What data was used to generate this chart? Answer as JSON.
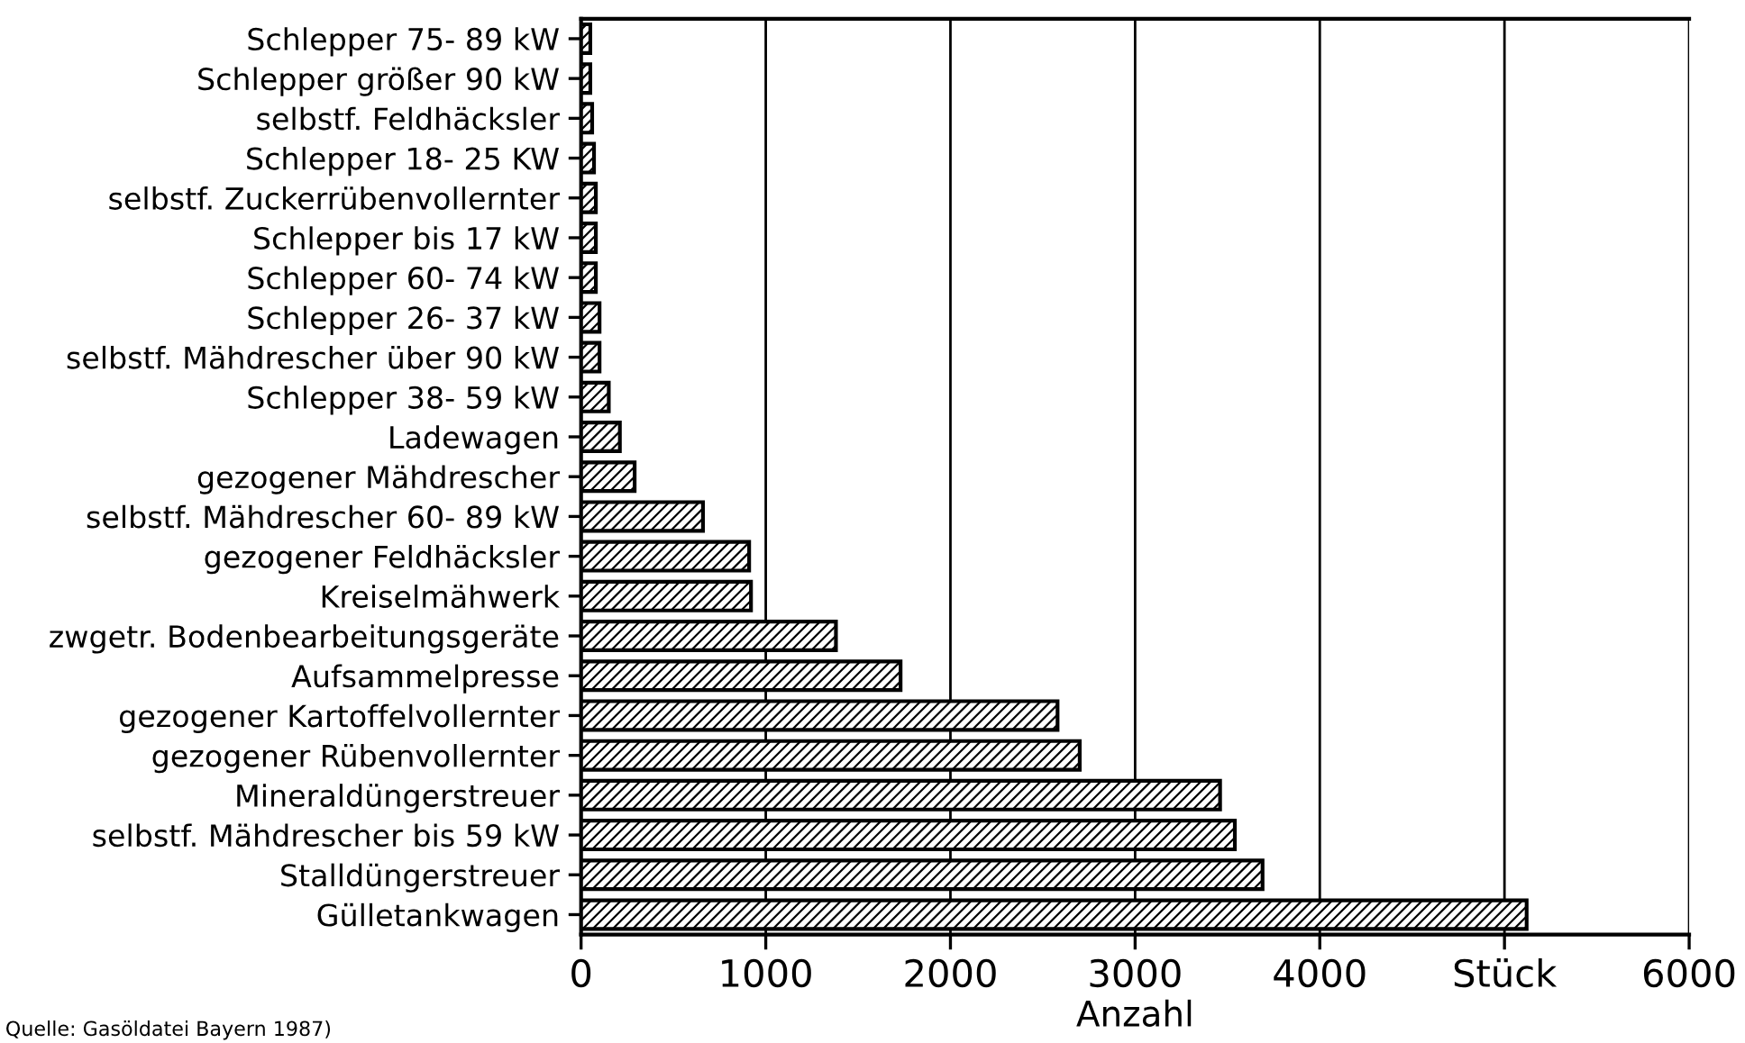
{
  "chart_data": {
    "type": "bar",
    "orientation": "horizontal",
    "xlabel": "Anzahl",
    "categories": [
      "Schlepper 75- 89 kW",
      "Schlepper größer 90 kW",
      "selbstf. Feldhäcksler",
      "Schlepper 18- 25 KW",
      "selbstf. Zuckerrübenvollernter",
      "Schlepper bis 17 kW",
      "Schlepper 60- 74 kW",
      "Schlepper 26- 37 kW",
      "selbstf. Mähdrescher über 90 kW",
      "Schlepper 38- 59 kW",
      "Ladewagen",
      "gezogener Mähdrescher",
      "selbstf. Mähdrescher 60- 89 kW",
      "gezogener Feldhäcksler",
      "Kreiselmähwerk",
      "zwgetr. Bodenbearbeitungsgeräte",
      "Aufsammelpresse",
      "gezogener Kartoffelvollernter",
      "gezogener Rübenvollernter",
      "Mineraldüngerstreuer",
      "selbstf. Mähdrescher bis 59 kW",
      "Stalldüngerstreuer",
      "Gülletankwagen"
    ],
    "values": [
      50,
      50,
      60,
      70,
      80,
      80,
      80,
      100,
      100,
      150,
      210,
      290,
      660,
      910,
      920,
      1380,
      1730,
      2580,
      2700,
      3460,
      3540,
      3690,
      5120
    ],
    "color": "#000000",
    "xlim": [
      0,
      6000
    ],
    "xticks": [
      0,
      1000,
      2000,
      3000,
      4000,
      {
        "value": 5000,
        "label": "Stück"
      },
      6000
    ],
    "grid": "x",
    "annotations": [
      "Quelle: Gasöldatei Bayern 1987)"
    ]
  }
}
